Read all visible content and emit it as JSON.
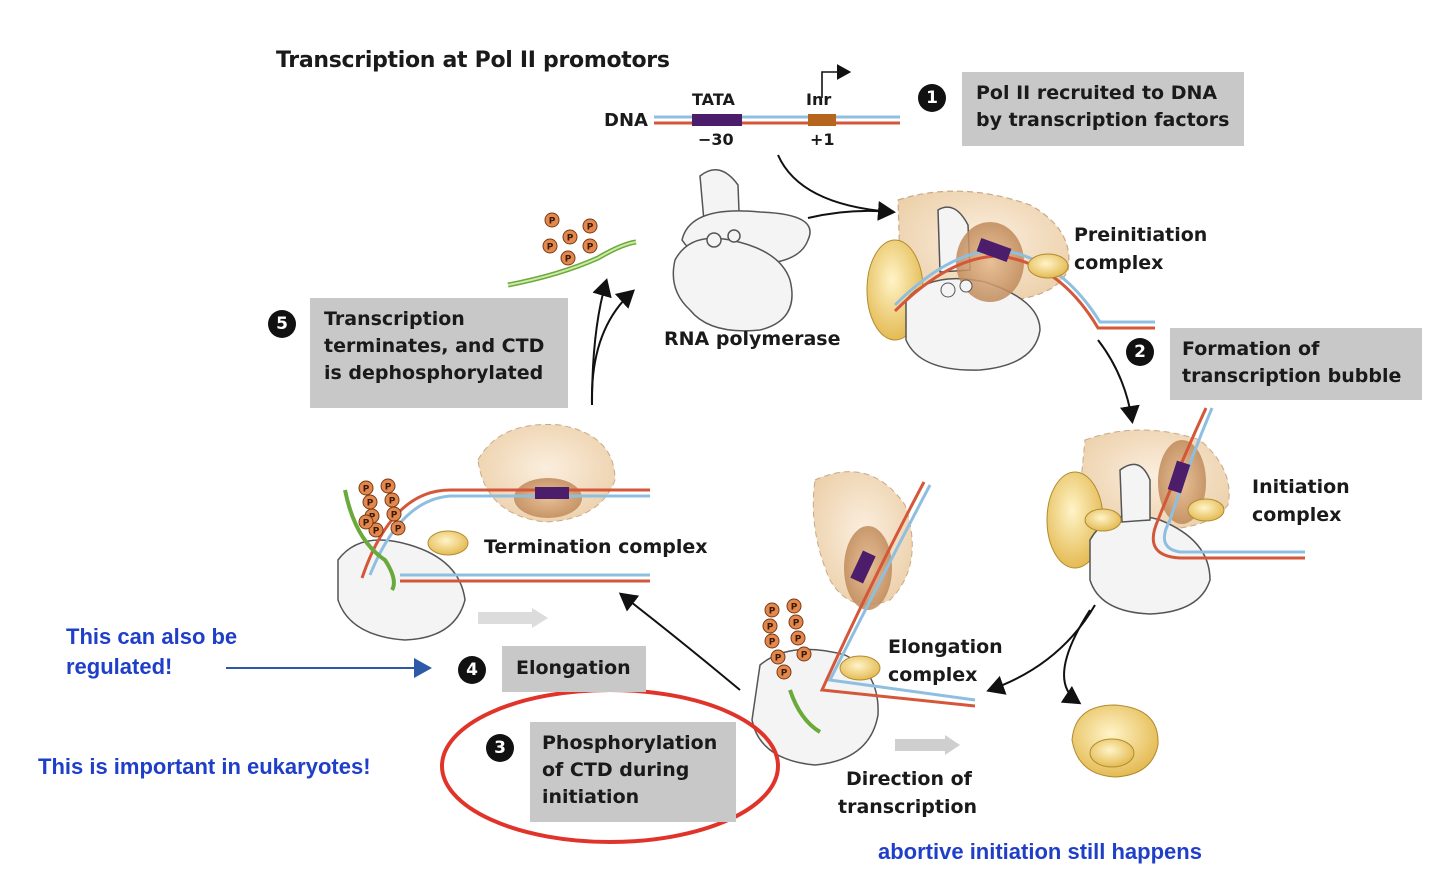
{
  "title": "Transcription at Pol II promotors",
  "dna": {
    "label": "DNA",
    "tata": "TATA",
    "inr": "Inr",
    "pos_tata": "−30",
    "pos_inr": "+1"
  },
  "steps": [
    {
      "number": "1",
      "line1": "Pol II recruited to DNA",
      "line2": "by transcription factors"
    },
    {
      "number": "2",
      "line1": "Formation of",
      "line2": "transcription bubble"
    },
    {
      "number": "3",
      "line1": "Phosphorylation",
      "line2": "of CTD during",
      "line3": "initiation"
    },
    {
      "number": "4",
      "line1": "Elongation"
    },
    {
      "number": "5",
      "line1": "Transcription",
      "line2": "terminates, and CTD",
      "line3": "is dephosphorylated"
    }
  ],
  "complexes": {
    "preinitiation": [
      "Preinitiation",
      "complex"
    ],
    "rna_polymerase": "RNA polymerase",
    "initiation": [
      "Initiation",
      "complex"
    ],
    "elongation": [
      "Elongation",
      "complex"
    ],
    "termination": "Termination complex",
    "direction": [
      "Direction of",
      "transcription"
    ]
  },
  "phosphate_label": "P",
  "annotations": {
    "regulated": [
      "This can also be",
      "regulated!"
    ],
    "important": "This is important in eukaryotes!",
    "abortive": "abortive initiation still happens"
  },
  "colors": {
    "annotation_blue": "#1f3fc9",
    "highlight_red": "#e0342a",
    "strand_orange": "#d4573a",
    "strand_blue": "#8fbfe0",
    "tata_purple": "#4b1d6b",
    "tf_yellow": "#e6c567",
    "box_gray": "#c8c8c8"
  }
}
